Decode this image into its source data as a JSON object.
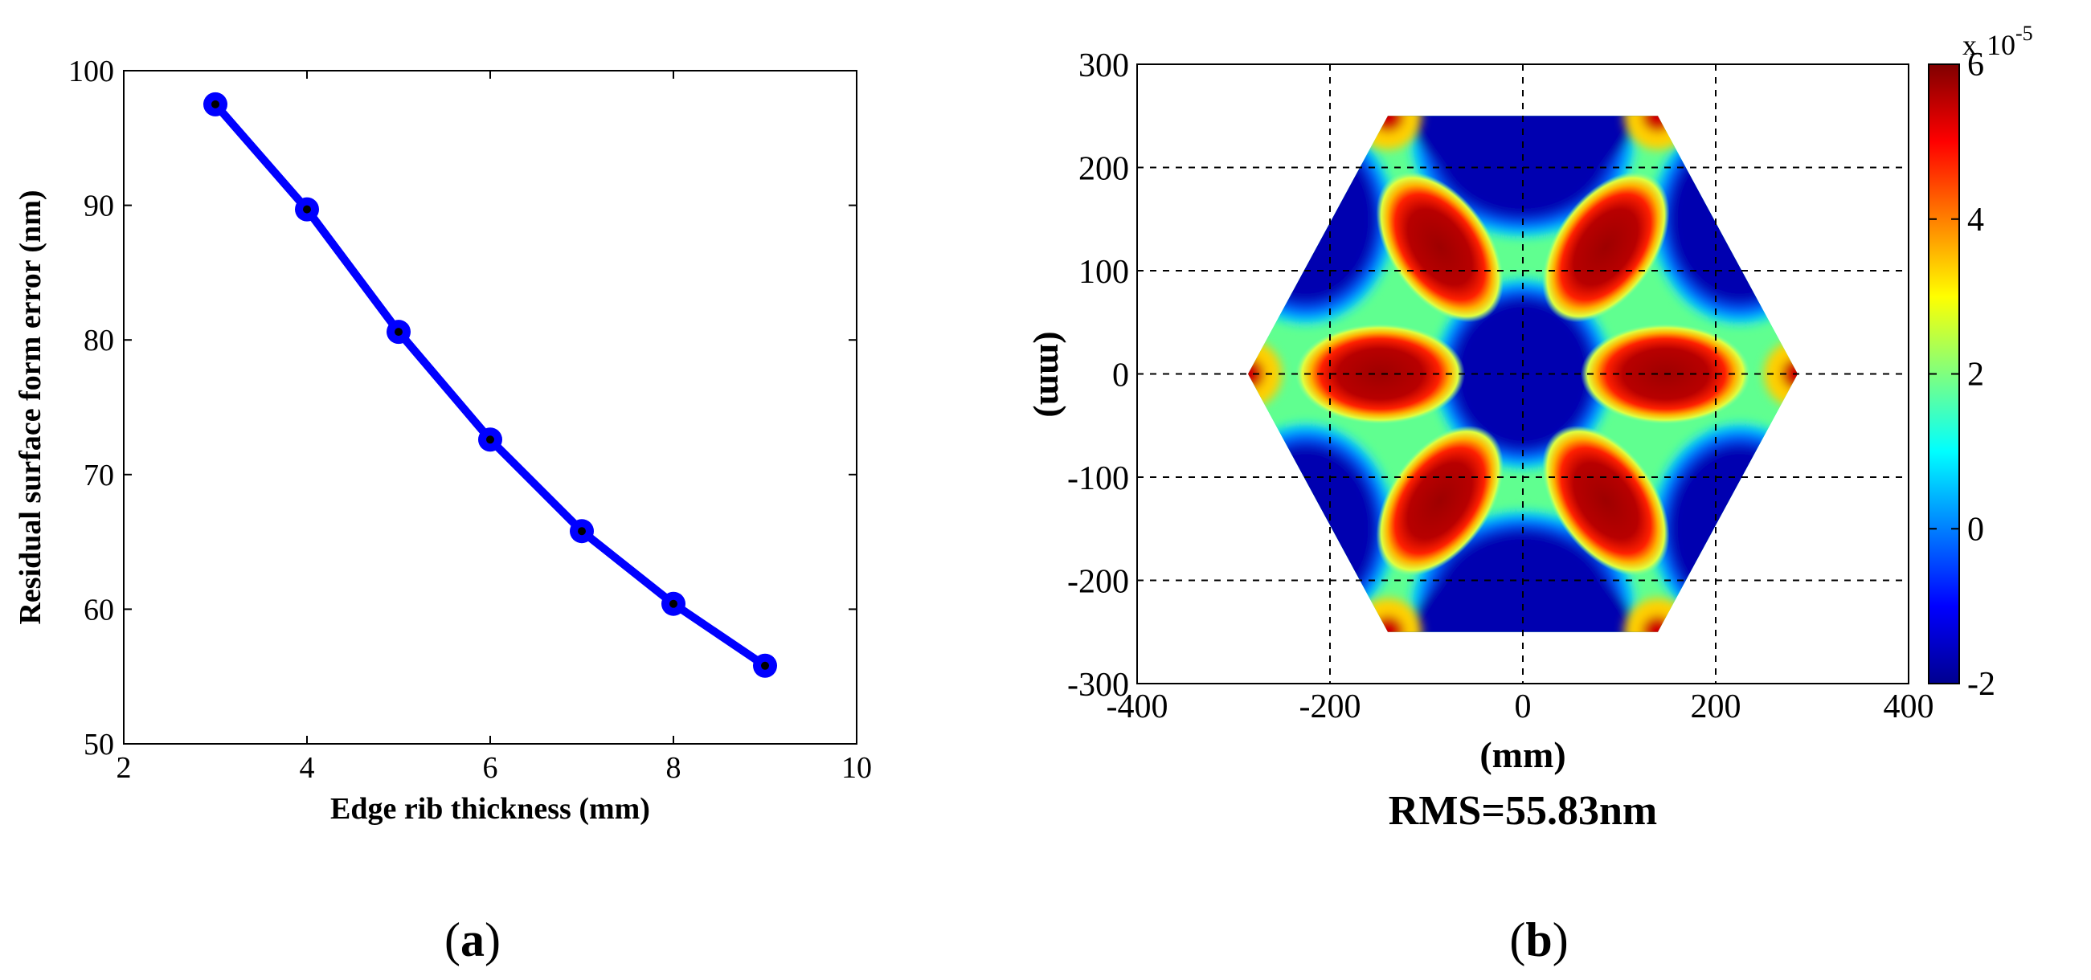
{
  "chart_data": [
    {
      "type": "line",
      "panel_label": "(a)",
      "panel_letter": "a",
      "xlabel": "Edge rib thickness (mm)",
      "ylabel": "Residual surface form error (nm)",
      "xlim": [
        2,
        10
      ],
      "ylim": [
        50,
        100
      ],
      "xticks": [
        2,
        4,
        6,
        8,
        10
      ],
      "yticks": [
        50,
        60,
        70,
        80,
        90,
        100
      ],
      "grid": false,
      "series": [
        {
          "color": "#0000ff",
          "marker_color": "#000000",
          "x": [
            3,
            4,
            5,
            6,
            7,
            8,
            9
          ],
          "y": [
            97.5,
            89.7,
            80.6,
            72.6,
            65.8,
            60.4,
            55.8
          ]
        }
      ]
    },
    {
      "type": "heatmap",
      "panel_label": "(b)",
      "panel_letter": "b",
      "xlabel": "(mm)",
      "ylabel": "(mm)",
      "caption": "RMS=55.83nm",
      "xlim": [
        -400,
        400
      ],
      "ylim": [
        -300,
        300
      ],
      "xticks": [
        -400,
        -200,
        0,
        200,
        400
      ],
      "yticks": [
        -300,
        -200,
        -100,
        0,
        100,
        200,
        300
      ],
      "grid": true,
      "grid_style": "dashed",
      "colorbar": {
        "range": [
          -2,
          6
        ],
        "ticks": [
          -2,
          0,
          2,
          4,
          6
        ],
        "scale_base": "10",
        "scale_exp": "-5",
        "scale_prefix": "x",
        "colormap": "jet"
      },
      "shape": "hexagon",
      "hexagon_vertices": [
        [
          -140,
          250
        ],
        [
          140,
          250
        ],
        [
          285,
          0
        ],
        [
          140,
          -250
        ],
        [
          -140,
          -250
        ],
        [
          -285,
          0
        ]
      ]
    }
  ]
}
